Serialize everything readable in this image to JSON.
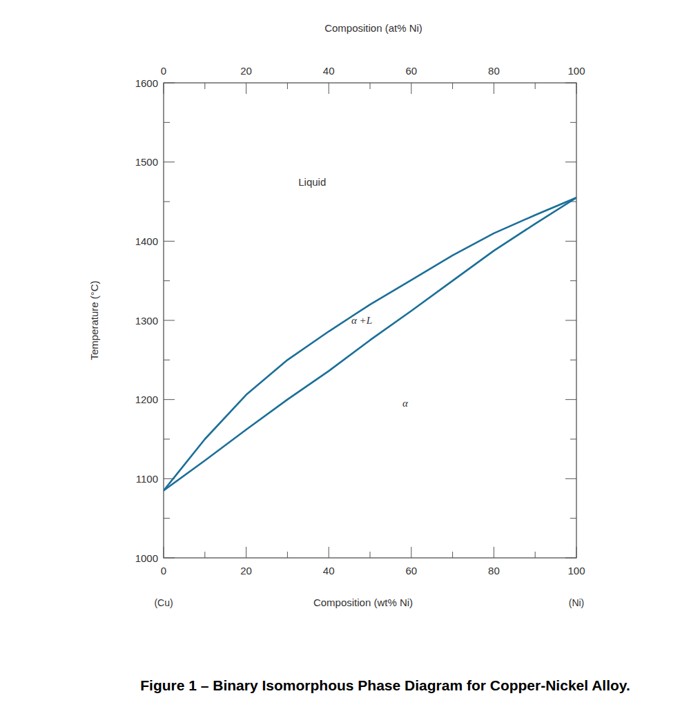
{
  "chart_data": {
    "type": "line",
    "title": "Figure 1 – Binary Isomorphous Phase Diagram for Copper-Nickel Alloy.",
    "x_label": "Composition (wt% Ni)",
    "x2_label": "Composition (at% Ni)",
    "y_label": "Temperature (°C)",
    "x": [
      0,
      10,
      20,
      30,
      40,
      50,
      60,
      70,
      80,
      90,
      100
    ],
    "series": [
      {
        "color": "#1b6f98",
        "values": [
          1085,
          1150,
          1206,
          1250,
          1286,
          1320,
          1351,
          1382,
          1410,
          1433,
          1455
        ]
      },
      {
        "color": "#1b6f98",
        "values": [
          1085,
          1123,
          1162,
          1200,
          1236,
          1275,
          1312,
          1350,
          1388,
          1422,
          1455
        ]
      }
    ],
    "xlim": [
      0,
      100
    ],
    "xticks": [
      0,
      {
        "value": 10,
        "label": null
      },
      20,
      {
        "value": 30,
        "label": null
      },
      40,
      {
        "value": 50,
        "label": null
      },
      60,
      {
        "value": 70,
        "label": null
      },
      80,
      {
        "value": 90,
        "label": null
      },
      100
    ],
    "x2lim": [
      0,
      100
    ],
    "x2ticks": [
      0,
      {
        "value": 10,
        "label": null
      },
      20,
      {
        "value": 30,
        "label": null
      },
      40,
      {
        "value": 50,
        "label": null
      },
      60,
      {
        "value": 70,
        "label": null
      },
      80,
      {
        "value": 90,
        "label": null
      },
      100
    ],
    "ylim": [
      1000,
      1600
    ],
    "yticks": [
      1000,
      {
        "value": 1050,
        "label": null
      },
      1100,
      {
        "value": 1150,
        "label": null
      },
      1200,
      {
        "value": 1250,
        "label": null
      },
      1300,
      {
        "value": 1350,
        "label": null
      },
      1400,
      {
        "value": 1450,
        "label": null
      },
      1500,
      {
        "value": 1550,
        "label": null
      },
      1600
    ],
    "annotations": [
      {
        "text": "Liquid",
        "x": 36,
        "y": 1475
      },
      {
        "text": "α +L",
        "x": 48,
        "y": 1300
      },
      {
        "text": "α",
        "x": 58.5,
        "y": 1195
      }
    ],
    "component_labels": [
      "(Cu)",
      "(Ni)"
    ],
    "grid": false
  }
}
